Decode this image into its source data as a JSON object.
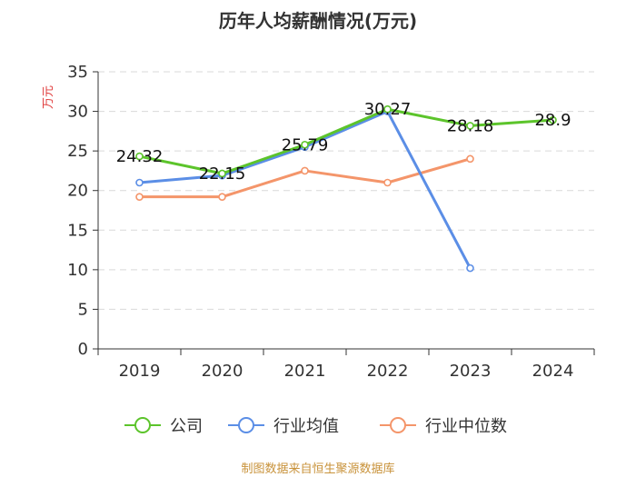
{
  "chart_data": {
    "type": "line",
    "title": "历年人均薪酬情况(万元)",
    "ylabel": "万元",
    "xlabel": "",
    "categories": [
      "2019",
      "2020",
      "2021",
      "2022",
      "2023",
      "2024"
    ],
    "ylim": [
      0,
      35
    ],
    "yticks": [
      "0",
      "5",
      "10",
      "15",
      "20",
      "25",
      "30",
      "35"
    ],
    "grid": true,
    "legend_position": "bottom",
    "series": [
      {
        "name": "公司",
        "color": "#5cc42b",
        "values": [
          24.32,
          22.15,
          25.79,
          30.27,
          28.18,
          28.9
        ],
        "labels": [
          "24.32",
          "22.15",
          "25.79",
          "30.27",
          "28.18",
          "28.9"
        ]
      },
      {
        "name": "行业均值",
        "color": "#5b8ee6",
        "values": [
          21.0,
          21.9,
          25.5,
          30.0,
          10.2,
          null
        ]
      },
      {
        "name": "行业中位数",
        "color": "#f4956a",
        "values": [
          19.2,
          19.2,
          22.5,
          21.0,
          24.0,
          null
        ]
      }
    ],
    "source": "制图数据来自恒生聚源数据库"
  }
}
